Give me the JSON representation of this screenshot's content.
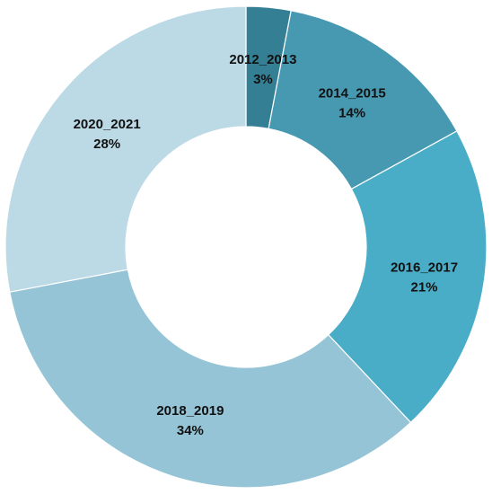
{
  "chart_data": {
    "type": "pie",
    "variant": "donut",
    "categories": [
      "2012_2013",
      "2014_2015",
      "2016_2017",
      "2018_2019",
      "2020_2021"
    ],
    "values": [
      3,
      14,
      21,
      34,
      28
    ],
    "value_labels": [
      "3%",
      "14%",
      "21%",
      "34%",
      "28%"
    ],
    "colors": [
      "#357f95",
      "#4699b1",
      "#4aadc8",
      "#95c4d7",
      "#bcd9e6"
    ],
    "title": "",
    "legend": "none",
    "data_labels": "inside"
  }
}
